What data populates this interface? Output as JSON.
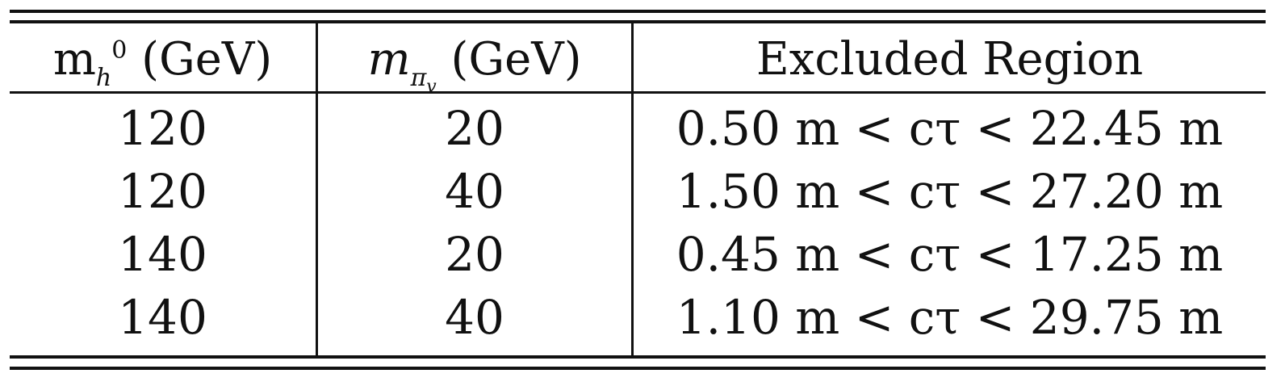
{
  "table": {
    "headers": {
      "col1_base": "m",
      "col1_sub": "h",
      "col1_sup": "0",
      "col1_unit": "(GeV)",
      "col2_base": "m",
      "col2_sub": "π",
      "col2_subsub": "v",
      "col2_unit": "(GeV)",
      "col3": "Excluded Region"
    },
    "rows": [
      {
        "mh": "120",
        "mpi": "20",
        "region": "0.50 m < cτ < 22.45 m"
      },
      {
        "mh": "120",
        "mpi": "40",
        "region": "1.50 m < cτ < 27.20 m"
      },
      {
        "mh": "140",
        "mpi": "20",
        "region": "0.45 m < cτ < 17.25 m"
      },
      {
        "mh": "140",
        "mpi": "40",
        "region": "1.10 m < cτ < 29.75 m"
      }
    ]
  }
}
